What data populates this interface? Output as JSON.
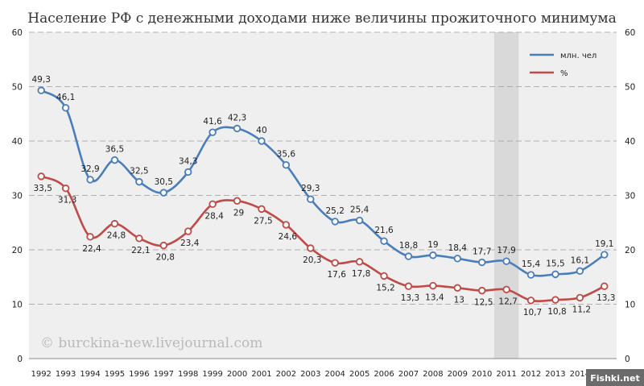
{
  "chart_data": {
    "type": "line",
    "title": "Население РФ с денежными доходами ниже величины прожиточного минимума",
    "x": [
      "1992",
      "1993",
      "1994",
      "1995",
      "1996",
      "1997",
      "1998",
      "1999",
      "2000",
      "2001",
      "2002",
      "2003",
      "2004",
      "2005",
      "2006",
      "2007",
      "2008",
      "2009",
      "2010",
      "2011",
      "2012",
      "2013",
      "2014",
      "2015"
    ],
    "series": [
      {
        "name": "млн. чел",
        "color": "#4a7ebb",
        "values": [
          49.3,
          46.1,
          32.9,
          36.5,
          32.5,
          30.5,
          34.3,
          41.6,
          42.3,
          40,
          35.6,
          29.3,
          25.2,
          25.4,
          21.6,
          18.8,
          19,
          18.4,
          17.7,
          17.9,
          15.4,
          15.5,
          16.1,
          19.1
        ],
        "labels": [
          "49,3",
          "46,1",
          "32,9",
          "36,5",
          "32,5",
          "30,5",
          "34,3",
          "41,6",
          "42,3",
          "40",
          "35,6",
          "29,3",
          "25,2",
          "25,4",
          "21,6",
          "18,8",
          "19",
          "18,4",
          "17,7",
          "17,9",
          "15,4",
          "15,5",
          "16,1",
          "19,1"
        ]
      },
      {
        "name": "%",
        "color": "#be4b48",
        "values": [
          33.5,
          31.3,
          22.4,
          24.8,
          22.1,
          20.8,
          23.4,
          28.4,
          29,
          27.5,
          24.6,
          20.3,
          17.6,
          17.8,
          15.2,
          13.3,
          13.4,
          13,
          12.5,
          12.7,
          10.7,
          10.8,
          11.2,
          13.3
        ],
        "labels": [
          "33,5",
          "31,3",
          "22,4",
          "24,8",
          "22,1",
          "20,8",
          "23,4",
          "28,4",
          "29",
          "27,5",
          "24,6",
          "20,3",
          "17,6",
          "17,8",
          "15,2",
          "13,3",
          "13,4",
          "13",
          "12,5",
          "12,7",
          "10,7",
          "10,8",
          "11,2",
          "13,3"
        ]
      }
    ],
    "ylim": [
      0,
      60
    ],
    "yticks": [
      "0",
      "10",
      "20",
      "30",
      "40",
      "50",
      "60"
    ],
    "highlight_year": "2011",
    "grid": true,
    "legend_position": "top-right",
    "watermark": "© burckina-new.livejournal.com",
    "corner_mark": "Fishki.net"
  }
}
